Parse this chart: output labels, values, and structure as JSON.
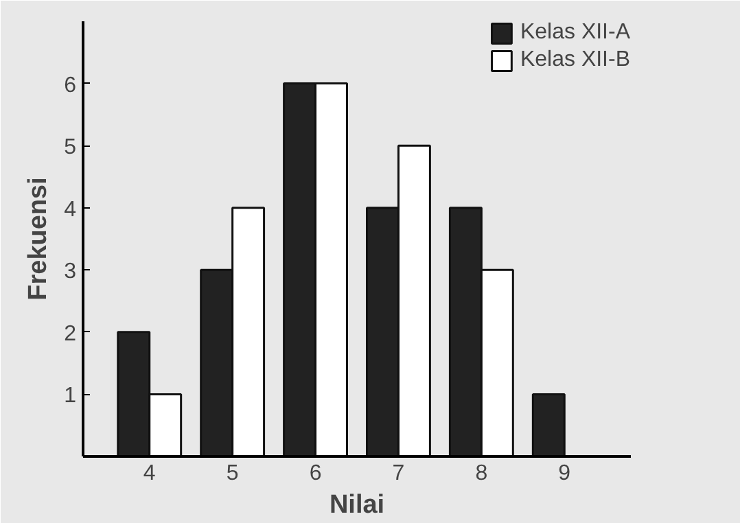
{
  "chart_data": {
    "type": "bar",
    "xlabel": "Nilai",
    "ylabel": "Frekuensi",
    "categories": [
      "4",
      "5",
      "6",
      "7",
      "8",
      "9"
    ],
    "series": [
      {
        "name": "Kelas XII-A",
        "color": "#222222",
        "values": [
          2,
          3,
          6,
          4,
          4,
          1
        ]
      },
      {
        "name": "Kelas XII-B",
        "color": "#ffffff",
        "values": [
          1,
          4,
          6,
          5,
          3,
          null
        ]
      }
    ],
    "ylim": [
      0,
      7
    ],
    "yticks": [
      1,
      2,
      3,
      4,
      5,
      6
    ],
    "legend": "top right"
  }
}
